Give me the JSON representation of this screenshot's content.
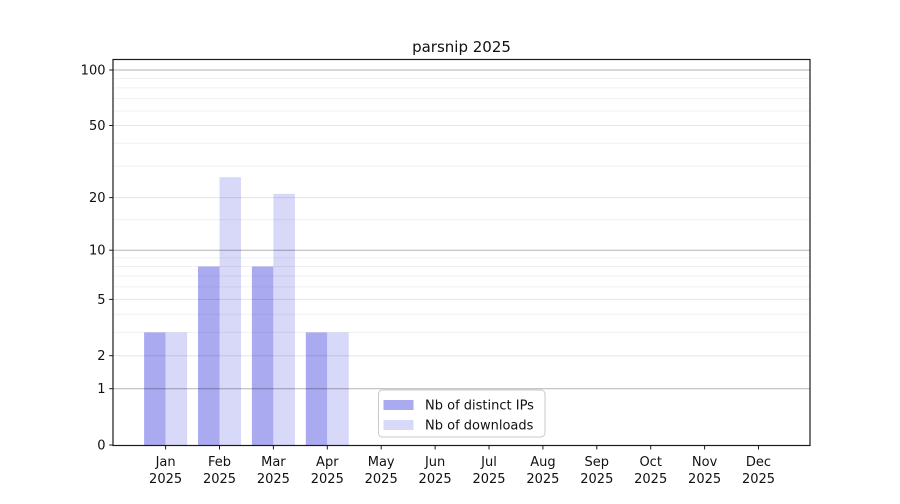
{
  "chart_data": {
    "type": "bar",
    "title": "parsnip 2025",
    "categories": [
      "Jan",
      "Feb",
      "Mar",
      "Apr",
      "May",
      "Jun",
      "Jul",
      "Aug",
      "Sep",
      "Oct",
      "Nov",
      "Dec"
    ],
    "x_year_suffix": "2025",
    "series": [
      {
        "name": "Nb of distinct IPs",
        "color": "#aaaaf0",
        "values": [
          3,
          8,
          8,
          3,
          0,
          0,
          0,
          0,
          0,
          0,
          0,
          0
        ]
      },
      {
        "name": "Nb of downloads",
        "color": "#d8d8f8",
        "values": [
          3,
          26,
          21,
          3,
          0,
          0,
          0,
          0,
          0,
          0,
          0,
          0
        ]
      }
    ],
    "y_axis": {
      "scale": "log1p",
      "tick_values": [
        0,
        1,
        2,
        5,
        10,
        20,
        50,
        100
      ],
      "major_grid_values": [
        1,
        10,
        100
      ],
      "light_grid_values": [
        2,
        5,
        20,
        50
      ],
      "minor_grid_values": [
        3,
        4,
        6,
        7,
        8,
        9,
        15,
        30,
        40,
        60,
        70,
        80,
        90
      ],
      "max": 100
    },
    "legend": {
      "position": "lower-center"
    },
    "grid": true
  },
  "colors": {
    "spine": "#1a1a1a",
    "grid_major": "rgba(0,0,0,0.30)",
    "grid_light": "rgba(0,0,0,0.10)",
    "grid_minor": "rgba(0,0,0,0.06)",
    "legend_border": "#c9c9c9",
    "legend_bg": "#ffffff"
  }
}
